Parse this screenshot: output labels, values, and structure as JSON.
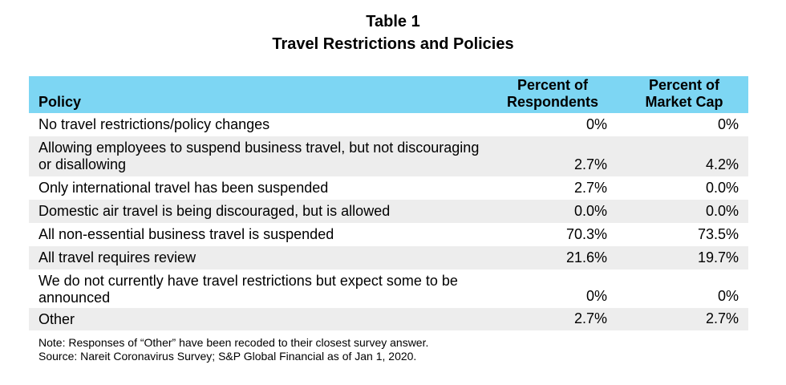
{
  "title": "Table 1",
  "subtitle": "Travel Restrictions and Policies",
  "chart_data": {
    "type": "table",
    "title": "Table 1",
    "subtitle": "Travel Restrictions and Policies",
    "columns": [
      "Policy",
      "Percent of Respondents",
      "Percent of Market Cap"
    ],
    "rows": [
      {
        "policy": "No travel restrictions/policy changes",
        "respondents": "0%",
        "market_cap": "0%"
      },
      {
        "policy": "Allowing employees to suspend business travel, but not discouraging or disallowing",
        "respondents": "2.7%",
        "market_cap": "4.2%"
      },
      {
        "policy": "Only international travel has been suspended",
        "respondents": "2.7%",
        "market_cap": "0.0%"
      },
      {
        "policy": "Domestic air travel is being discouraged, but is allowed",
        "respondents": "0.0%",
        "market_cap": "0.0%"
      },
      {
        "policy": "All non-essential business travel is suspended",
        "respondents": "70.3%",
        "market_cap": "73.5%"
      },
      {
        "policy": "All travel requires review",
        "respondents": "21.6%",
        "market_cap": "19.7%"
      },
      {
        "policy": "We do not currently have travel restrictions but expect some to be announced",
        "respondents": "0%",
        "market_cap": "0%"
      },
      {
        "policy": "Other",
        "respondents": "2.7%",
        "market_cap": "2.7%"
      }
    ],
    "header_color": "#7dd6f3",
    "stripe_color": "#ededed"
  },
  "header": {
    "policy": "Policy",
    "respondents_line1": "Percent of",
    "respondents_line2": "Respondents",
    "market_cap_line1": "Percent of",
    "market_cap_line2": "Market Cap"
  },
  "notes": {
    "note": "Note: Responses of “Other” have been recoded to their closest survey answer.",
    "source": "Source: Nareit Coronavirus Survey; S&P Global Financial as of Jan 1, 2020."
  }
}
